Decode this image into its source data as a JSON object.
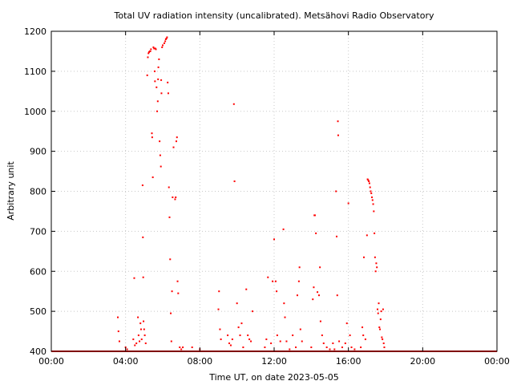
{
  "chart_data": {
    "type": "scatter",
    "title": "Total UV radiation intensity (uncalibrated). Metsähovi Radio Observatory",
    "xlabel": "Time UT, on date 2023-05-05",
    "ylabel": "Arbitrary unit",
    "xlim": [
      "00:00",
      "24:00"
    ],
    "ylim": [
      400,
      1200
    ],
    "x_ticks": [
      "00:00",
      "04:00",
      "08:00",
      "12:00",
      "16:00",
      "20:00",
      "00:00"
    ],
    "y_ticks": [
      400,
      500,
      600,
      700,
      800,
      900,
      1000,
      1100,
      1200
    ],
    "grid": true,
    "series_color": "#ff0000",
    "series": [
      {
        "points": [
          [
            "03:35",
            485
          ],
          [
            "03:37",
            450
          ],
          [
            "03:40",
            425
          ],
          [
            "04:00",
            410
          ],
          [
            "04:05",
            405
          ],
          [
            "04:25",
            430
          ],
          [
            "04:28",
            583
          ],
          [
            "04:30",
            415
          ],
          [
            "04:35",
            420
          ],
          [
            "04:40",
            485
          ],
          [
            "04:42",
            440
          ],
          [
            "04:45",
            425
          ],
          [
            "04:48",
            470
          ],
          [
            "04:50",
            455
          ],
          [
            "04:52",
            430
          ],
          [
            "04:55",
            815
          ],
          [
            "04:56",
            685
          ],
          [
            "04:57",
            585
          ],
          [
            "04:58",
            475
          ],
          [
            "05:00",
            455
          ],
          [
            "05:02",
            440
          ],
          [
            "05:05",
            420
          ],
          [
            "05:10",
            1090
          ],
          [
            "05:12",
            1135
          ],
          [
            "05:14",
            1145
          ],
          [
            "05:16",
            1148
          ],
          [
            "05:18",
            1150
          ],
          [
            "05:20",
            1150
          ],
          [
            "05:22",
            1155
          ],
          [
            "05:25",
            945
          ],
          [
            "05:26",
            935
          ],
          [
            "05:28",
            835
          ],
          [
            "05:30",
            1160
          ],
          [
            "05:32",
            1157
          ],
          [
            "05:34",
            1100
          ],
          [
            "05:35",
            1075
          ],
          [
            "05:36",
            1157
          ],
          [
            "05:38",
            1155
          ],
          [
            "05:40",
            1060
          ],
          [
            "05:42",
            1000
          ],
          [
            "05:44",
            1025
          ],
          [
            "05:45",
            1080
          ],
          [
            "05:46",
            1110
          ],
          [
            "05:48",
            1130
          ],
          [
            "05:50",
            925
          ],
          [
            "05:52",
            890
          ],
          [
            "05:54",
            862
          ],
          [
            "05:55",
            1078
          ],
          [
            "05:56",
            1045
          ],
          [
            "05:58",
            1160
          ],
          [
            "06:00",
            1165
          ],
          [
            "06:05",
            1170
          ],
          [
            "06:08",
            1175
          ],
          [
            "06:10",
            1180
          ],
          [
            "06:12",
            1182
          ],
          [
            "06:14",
            1185
          ],
          [
            "06:16",
            1072
          ],
          [
            "06:18",
            1045
          ],
          [
            "06:20",
            810
          ],
          [
            "06:22",
            735
          ],
          [
            "06:24",
            630
          ],
          [
            "06:26",
            495
          ],
          [
            "06:28",
            425
          ],
          [
            "06:30",
            550
          ],
          [
            "06:32",
            785
          ],
          [
            "06:35",
            910
          ],
          [
            "06:40",
            780
          ],
          [
            "06:42",
            785
          ],
          [
            "06:44",
            925
          ],
          [
            "06:46",
            935
          ],
          [
            "06:48",
            575
          ],
          [
            "06:50",
            545
          ],
          [
            "06:55",
            410
          ],
          [
            "07:00",
            405
          ],
          [
            "07:05",
            410
          ],
          [
            "07:35",
            410
          ],
          [
            "08:00",
            405
          ],
          [
            "09:00",
            505
          ],
          [
            "09:02",
            550
          ],
          [
            "09:05",
            455
          ],
          [
            "09:08",
            430
          ],
          [
            "09:30",
            440
          ],
          [
            "09:35",
            420
          ],
          [
            "09:40",
            415
          ],
          [
            "09:45",
            430
          ],
          [
            "09:50",
            1018
          ],
          [
            "09:52",
            825
          ],
          [
            "10:00",
            520
          ],
          [
            "10:05",
            460
          ],
          [
            "10:10",
            440
          ],
          [
            "10:15",
            470
          ],
          [
            "10:20",
            410
          ],
          [
            "10:30",
            555
          ],
          [
            "10:35",
            440
          ],
          [
            "10:40",
            430
          ],
          [
            "10:45",
            425
          ],
          [
            "10:50",
            500
          ],
          [
            "11:30",
            410
          ],
          [
            "11:35",
            430
          ],
          [
            "11:40",
            585
          ],
          [
            "11:50",
            420
          ],
          [
            "11:55",
            575
          ],
          [
            "12:00",
            680
          ],
          [
            "12:05",
            575
          ],
          [
            "12:08",
            550
          ],
          [
            "12:10",
            440
          ],
          [
            "12:20",
            425
          ],
          [
            "12:30",
            705
          ],
          [
            "12:32",
            520
          ],
          [
            "12:35",
            485
          ],
          [
            "12:40",
            425
          ],
          [
            "12:50",
            405
          ],
          [
            "13:00",
            440
          ],
          [
            "13:10",
            410
          ],
          [
            "13:15",
            540
          ],
          [
            "13:20",
            575
          ],
          [
            "13:22",
            610
          ],
          [
            "13:25",
            455
          ],
          [
            "13:30",
            425
          ],
          [
            "13:40",
            400
          ],
          [
            "14:00",
            410
          ],
          [
            "14:05",
            530
          ],
          [
            "14:08",
            560
          ],
          [
            "14:10",
            740
          ],
          [
            "14:12",
            740
          ],
          [
            "14:15",
            695
          ],
          [
            "14:20",
            548
          ],
          [
            "14:25",
            540
          ],
          [
            "14:28",
            610
          ],
          [
            "14:30",
            475
          ],
          [
            "14:35",
            440
          ],
          [
            "14:40",
            420
          ],
          [
            "14:50",
            410
          ],
          [
            "15:00",
            405
          ],
          [
            "15:05",
            400
          ],
          [
            "15:10",
            420
          ],
          [
            "15:15",
            405
          ],
          [
            "15:20",
            800
          ],
          [
            "15:22",
            687
          ],
          [
            "15:24",
            540
          ],
          [
            "15:26",
            975
          ],
          [
            "15:27",
            940
          ],
          [
            "15:30",
            425
          ],
          [
            "15:40",
            410
          ],
          [
            "15:50",
            420
          ],
          [
            "15:55",
            470
          ],
          [
            "16:00",
            770
          ],
          [
            "16:05",
            440
          ],
          [
            "16:10",
            410
          ],
          [
            "16:20",
            405
          ],
          [
            "16:30",
            400
          ],
          [
            "16:40",
            410
          ],
          [
            "16:45",
            460
          ],
          [
            "16:48",
            440
          ],
          [
            "16:50",
            635
          ],
          [
            "16:55",
            430
          ],
          [
            "17:00",
            690
          ],
          [
            "17:02",
            830
          ],
          [
            "17:04",
            828
          ],
          [
            "17:06",
            825
          ],
          [
            "17:08",
            820
          ],
          [
            "17:10",
            810
          ],
          [
            "17:12",
            800
          ],
          [
            "17:14",
            795
          ],
          [
            "17:16",
            785
          ],
          [
            "17:18",
            778
          ],
          [
            "17:20",
            768
          ],
          [
            "17:22",
            750
          ],
          [
            "17:24",
            695
          ],
          [
            "17:26",
            635
          ],
          [
            "17:28",
            600
          ],
          [
            "17:30",
            620
          ],
          [
            "17:32",
            610
          ],
          [
            "17:34",
            505
          ],
          [
            "17:36",
            495
          ],
          [
            "17:38",
            520
          ],
          [
            "17:40",
            460
          ],
          [
            "17:42",
            455
          ],
          [
            "17:44",
            480
          ],
          [
            "17:46",
            500
          ],
          [
            "17:48",
            435
          ],
          [
            "17:50",
            430
          ],
          [
            "17:52",
            505
          ],
          [
            "17:54",
            420
          ],
          [
            "17:56",
            410
          ],
          [
            "18:00",
            400
          ],
          [
            "18:10",
            400
          ]
        ]
      }
    ]
  }
}
